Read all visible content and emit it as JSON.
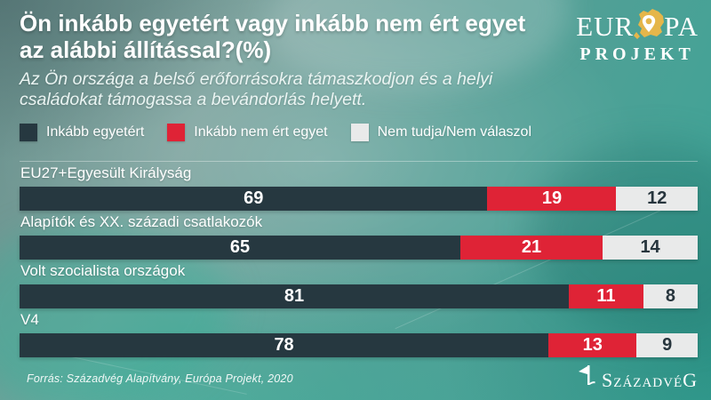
{
  "header": {
    "title_line1": "Ön inkább egyetért vagy inkább nem ért egyet",
    "title_line2": "az alábbi állítással?(%)",
    "subtitle": "Az Ön országa a belső erőforrásokra támaszkodjon és a helyi családokat támogassa a bevándorlás helyett."
  },
  "brand": {
    "europa_logo": {
      "word_start": "EUR",
      "word_end": "PA",
      "line2": "PROJEKT",
      "map_icon": "europe-map-pin-icon",
      "gold": "#E5B64A"
    },
    "szazadveg_logo": {
      "text": "SzázadvéG",
      "icon": "szazadveg-mark-icon"
    }
  },
  "footer": {
    "source": "Forrás: Századvég Alapítvány, Európa Projekt, 2020"
  },
  "chart_data": {
    "type": "bar",
    "orientation": "horizontal",
    "stacked": true,
    "title": "Ön inkább egyetért vagy inkább nem ért egyet az alábbi állítással?(%)",
    "subtitle": "Az Ön országa a belső erőforrásokra támaszkodjon és a helyi családokat támogassa a bevándorlás helyett.",
    "categories": [
      "EU27+Egyesült Királyság",
      "Alapítók és XX. századi csatlakozók",
      "Volt szocialista országok",
      "V4"
    ],
    "series": [
      {
        "name": "Inkább egyetért",
        "color": "#263840",
        "values": [
          69,
          65,
          81,
          78
        ]
      },
      {
        "name": "Inkább nem ért egyet",
        "color": "#DF2336",
        "values": [
          19,
          21,
          11,
          13
        ]
      },
      {
        "name": "Nem tudja/Nem válaszol",
        "color": "#E9EAEA",
        "values": [
          12,
          14,
          8,
          9
        ]
      }
    ],
    "xlim": [
      0,
      100
    ],
    "value_labels": true,
    "legend_position": "top",
    "grid": false,
    "background_color": "#4FA096",
    "source": "Forrás: Századvég Alapítvány, Európa Projekt, 2020"
  }
}
